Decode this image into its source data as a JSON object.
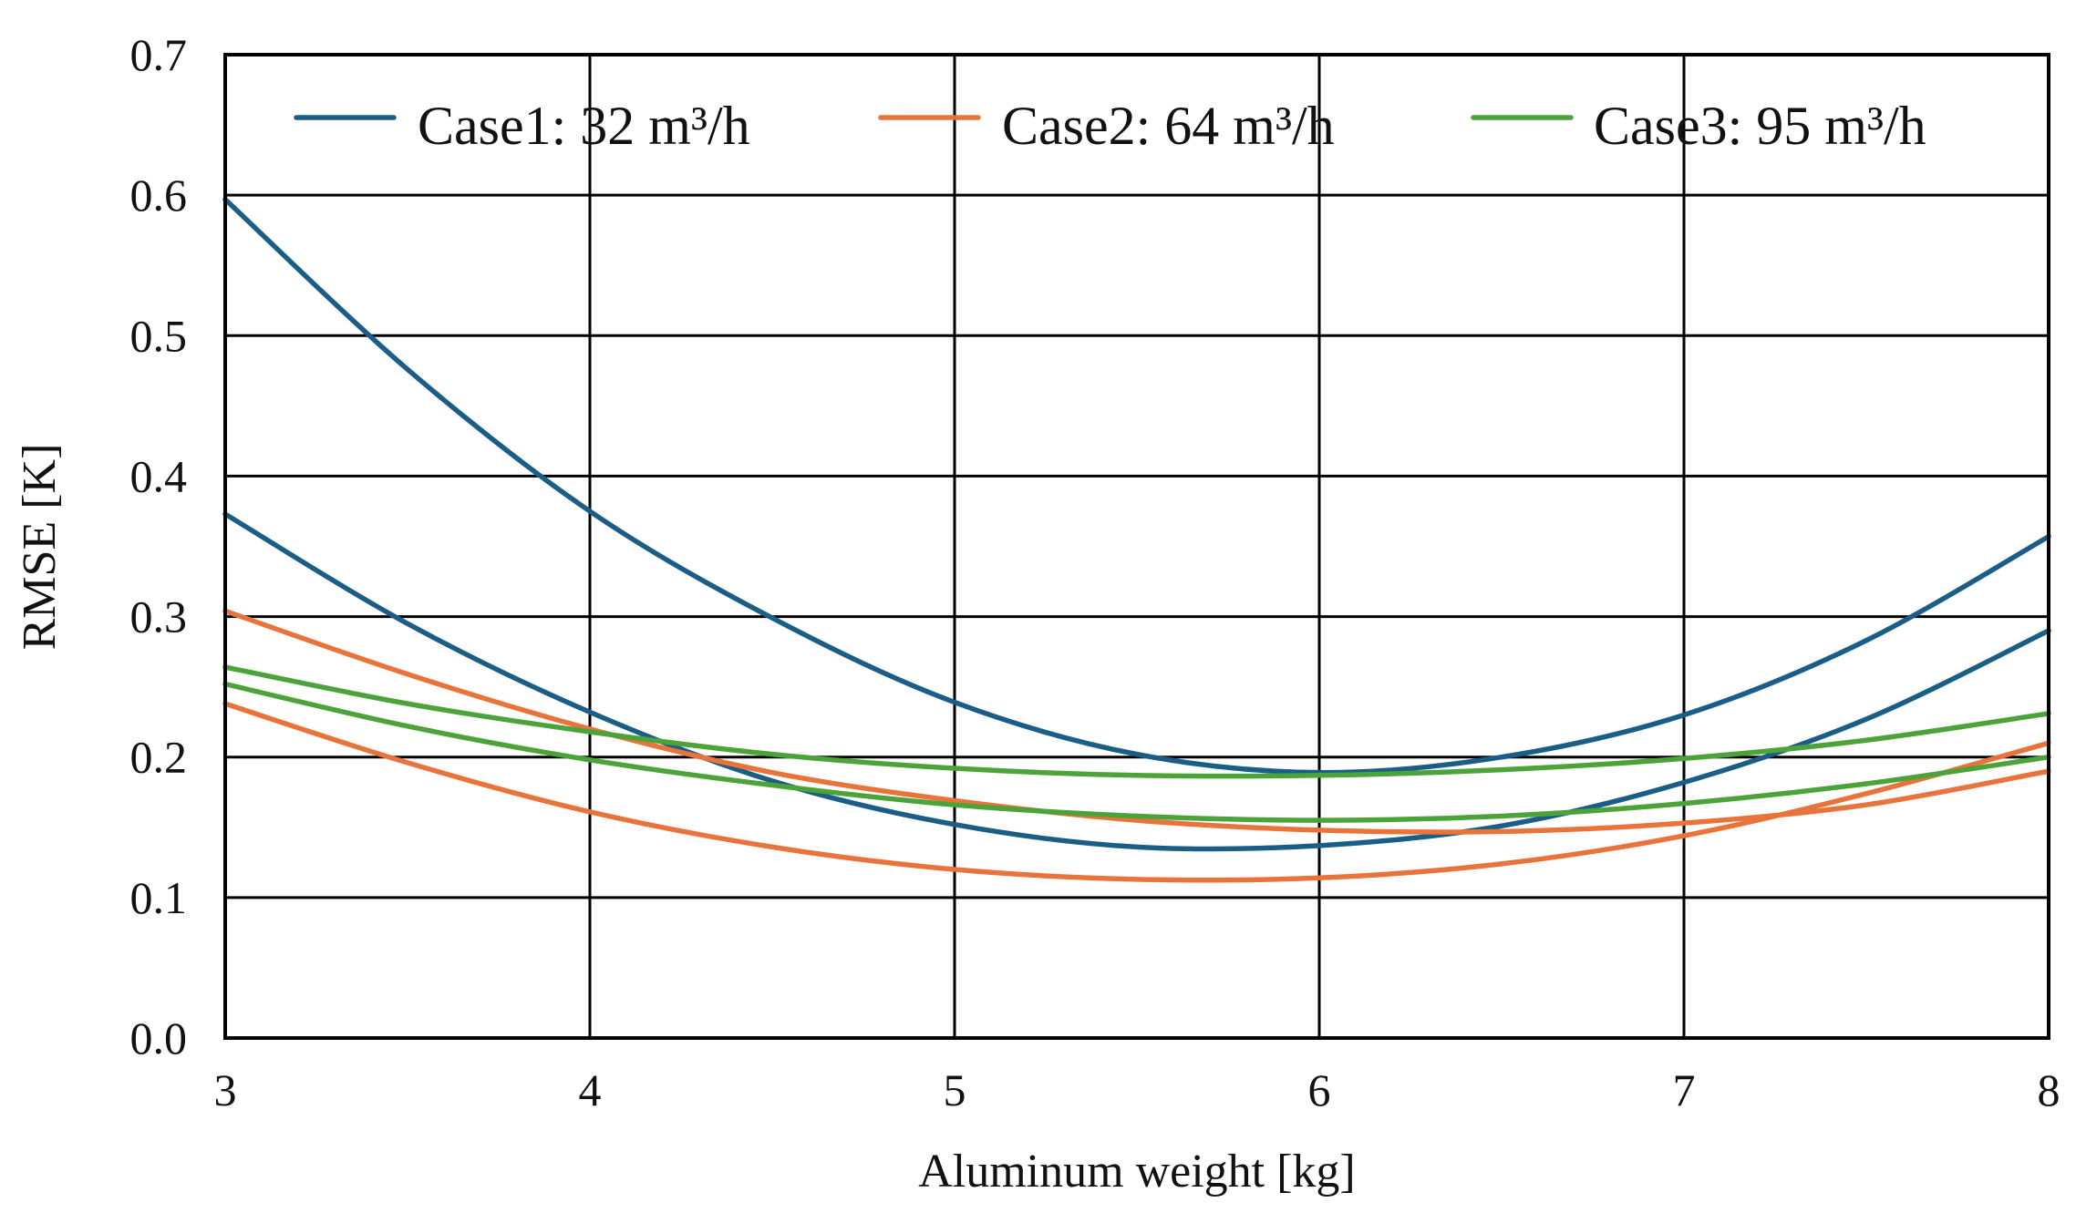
{
  "chart_data": {
    "type": "line",
    "title": "",
    "xlabel": "Aluminum weight [kg]",
    "ylabel": "RMSE [K]",
    "xlim": [
      3,
      8
    ],
    "ylim": [
      0.0,
      0.7
    ],
    "x_ticks": [
      "3",
      "4",
      "5",
      "6",
      "7",
      "8"
    ],
    "y_ticks": [
      "0.0",
      "0.1",
      "0.2",
      "0.3",
      "0.4",
      "0.5",
      "0.6",
      "0.7"
    ],
    "grid": true,
    "legend_position": "top",
    "legend": [
      {
        "label": "Case1: 32 m³/h",
        "color": "#1a5d87"
      },
      {
        "label": "Case2: 64 m³/h",
        "color": "#e8743b"
      },
      {
        "label": "Case3: 95 m³/h",
        "color": "#4ba33a"
      }
    ],
    "x": [
      3,
      3.5,
      4,
      4.5,
      5,
      5.5,
      6,
      6.5,
      7,
      7.5,
      8
    ],
    "series": [
      {
        "name": "Case1: 32 m³/h (upper)",
        "legend_index": 0,
        "color": "#1a5d87",
        "values": [
          0.597,
          0.476,
          0.375,
          0.299,
          0.239,
          0.202,
          0.189,
          0.2,
          0.23,
          0.283,
          0.357
        ]
      },
      {
        "name": "Case1: 32 m³/h (lower)",
        "legend_index": 0,
        "color": "#1a5d87",
        "values": [
          0.373,
          0.295,
          0.232,
          0.183,
          0.152,
          0.136,
          0.137,
          0.151,
          0.182,
          0.227,
          0.29
        ]
      },
      {
        "name": "Case2: 64 m³/h (upper)",
        "legend_index": 1,
        "color": "#e8743b",
        "values": [
          0.304,
          0.259,
          0.22,
          0.189,
          0.169,
          0.155,
          0.148,
          0.147,
          0.153,
          0.166,
          0.19
        ]
      },
      {
        "name": "Case2: 64 m³/h (lower)",
        "legend_index": 1,
        "color": "#e8743b",
        "values": [
          0.238,
          0.196,
          0.161,
          0.136,
          0.12,
          0.113,
          0.114,
          0.124,
          0.144,
          0.174,
          0.21
        ]
      },
      {
        "name": "Case3: 95 m³/h (upper)",
        "legend_index": 2,
        "color": "#4ba33a",
        "values": [
          0.264,
          0.238,
          0.218,
          0.202,
          0.192,
          0.187,
          0.187,
          0.191,
          0.199,
          0.212,
          0.231
        ]
      },
      {
        "name": "Case3: 95 m³/h (lower)",
        "legend_index": 2,
        "color": "#4ba33a",
        "values": [
          0.252,
          0.222,
          0.198,
          0.18,
          0.166,
          0.158,
          0.155,
          0.158,
          0.167,
          0.181,
          0.2
        ]
      }
    ]
  }
}
